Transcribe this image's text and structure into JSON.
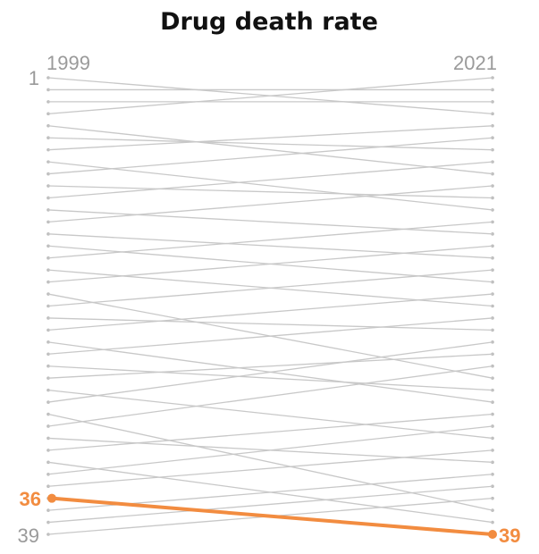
{
  "chart_data": {
    "type": "line",
    "title": "Drug death rate",
    "x": [
      "1999",
      "2021"
    ],
    "ranks": 39,
    "rank_labels": {
      "top": "1",
      "bottom": "39"
    },
    "highlight": {
      "from": 36,
      "to": 39,
      "label_from": "36",
      "label_to": "39",
      "color": "#f28c40"
    },
    "colors": {
      "line": "#c8c8c8",
      "dot": "#bdbdbd"
    },
    "series": [
      {
        "values": [
          1,
          4
        ]
      },
      {
        "values": [
          2,
          2
        ]
      },
      {
        "values": [
          3,
          3
        ]
      },
      {
        "values": [
          4,
          1
        ]
      },
      {
        "values": [
          5,
          9
        ]
      },
      {
        "values": [
          6,
          7
        ]
      },
      {
        "values": [
          7,
          5
        ]
      },
      {
        "values": [
          8,
          12
        ]
      },
      {
        "values": [
          9,
          6
        ]
      },
      {
        "values": [
          10,
          11
        ]
      },
      {
        "values": [
          11,
          8
        ]
      },
      {
        "values": [
          12,
          14
        ]
      },
      {
        "values": [
          13,
          10
        ]
      },
      {
        "values": [
          14,
          16
        ]
      },
      {
        "values": [
          15,
          18
        ]
      },
      {
        "values": [
          16,
          13
        ]
      },
      {
        "values": [
          17,
          20
        ]
      },
      {
        "values": [
          18,
          15
        ]
      },
      {
        "values": [
          19,
          26
        ]
      },
      {
        "values": [
          20,
          17
        ]
      },
      {
        "values": [
          21,
          22
        ]
      },
      {
        "values": [
          22,
          19
        ]
      },
      {
        "values": [
          23,
          28
        ]
      },
      {
        "values": [
          24,
          21
        ]
      },
      {
        "values": [
          25,
          27
        ]
      },
      {
        "values": [
          26,
          24
        ]
      },
      {
        "values": [
          27,
          31
        ]
      },
      {
        "values": [
          28,
          23
        ]
      },
      {
        "values": [
          29,
          37
        ]
      },
      {
        "values": [
          30,
          25
        ]
      },
      {
        "values": [
          31,
          33
        ]
      },
      {
        "values": [
          32,
          29
        ]
      },
      {
        "values": [
          33,
          38
        ]
      },
      {
        "values": [
          34,
          30
        ]
      },
      {
        "values": [
          35,
          32
        ]
      },
      {
        "values": [
          37,
          34
        ]
      },
      {
        "values": [
          38,
          35
        ]
      },
      {
        "values": [
          39,
          36
        ]
      }
    ]
  }
}
